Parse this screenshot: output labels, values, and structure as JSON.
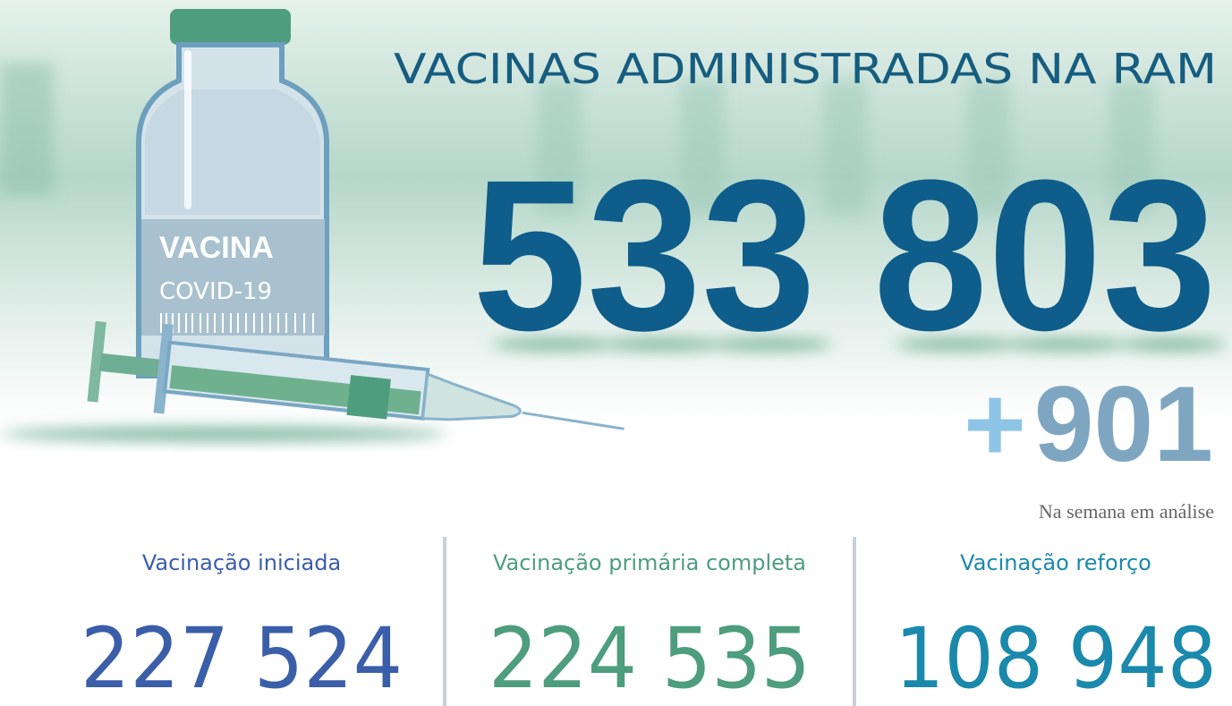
{
  "vial": {
    "label": "VACINA",
    "sublabel": "COVID-19"
  },
  "header": {
    "title": "VACINAS ADMINISTRADAS NA RAM",
    "total": "533 803",
    "increment_sign": "+",
    "increment": "901",
    "increment_note": "Na semana em análise"
  },
  "stats": [
    {
      "label": "Vacinação iniciada",
      "value": "227 524",
      "color": "#3b5ea9"
    },
    {
      "label": "Vacinação primária completa",
      "value": "224 535",
      "color": "#4d9d7e"
    },
    {
      "label": "Vacinação reforço",
      "value": "108 948",
      "color": "#1a89ab"
    }
  ]
}
